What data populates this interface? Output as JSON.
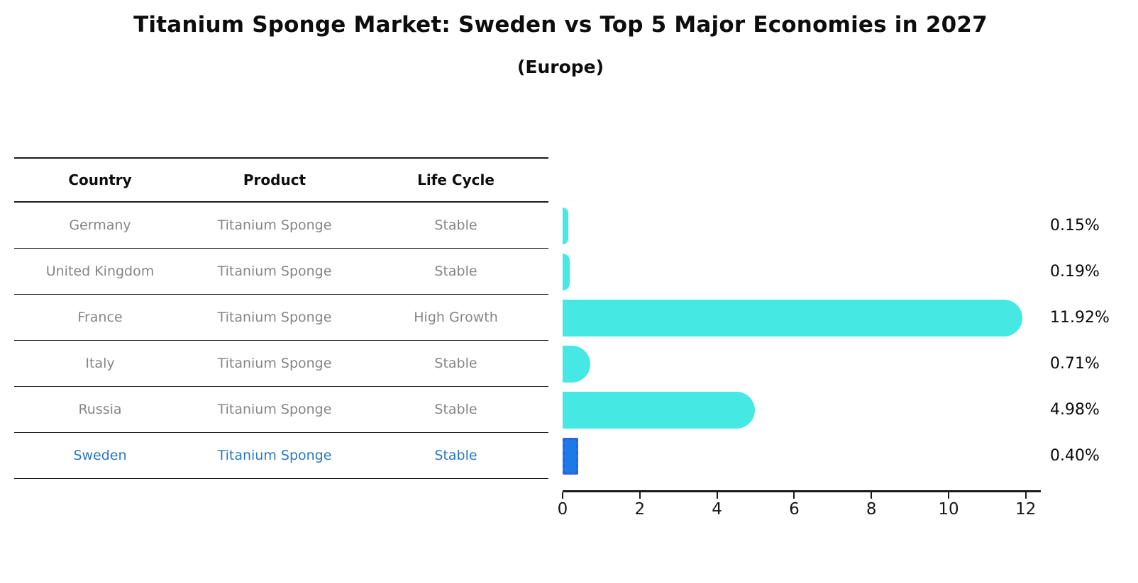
{
  "title": "Titanium Sponge Market: Sweden vs Top 5 Major Economies in 2027",
  "subtitle": "(Europe)",
  "table": {
    "headers": [
      "Country",
      "Product",
      "Life Cycle"
    ],
    "rows": [
      {
        "country": "Germany",
        "product": "Titanium Sponge",
        "life_cycle": "Stable",
        "highlight": false
      },
      {
        "country": "United Kingdom",
        "product": "Titanium Sponge",
        "life_cycle": "Stable",
        "highlight": false
      },
      {
        "country": "France",
        "product": "Titanium Sponge",
        "life_cycle": "High Growth",
        "highlight": false
      },
      {
        "country": "Italy",
        "product": "Titanium Sponge",
        "life_cycle": "Stable",
        "highlight": false
      },
      {
        "country": "Russia",
        "product": "Titanium Sponge",
        "life_cycle": "Stable",
        "highlight": false
      },
      {
        "country": "Sweden",
        "product": "Titanium Sponge",
        "life_cycle": "Stable",
        "highlight": true
      }
    ]
  },
  "chart_data": {
    "type": "bar",
    "orientation": "horizontal",
    "title": "Titanium Sponge Market: Sweden vs Top 5 Major Economies in 2027 (Europe)",
    "categories": [
      "Germany",
      "United Kingdom",
      "France",
      "Italy",
      "Russia",
      "Sweden"
    ],
    "values": [
      0.15,
      0.19,
      11.92,
      0.71,
      4.98,
      0.4
    ],
    "value_labels": [
      "0.15%",
      "0.19%",
      "11.92%",
      "0.71%",
      "4.98%",
      "0.40%"
    ],
    "x_ticks": [
      "0",
      "2",
      "4",
      "6",
      "8",
      "10",
      "12"
    ],
    "xlim": [
      0,
      12.4
    ],
    "grid": false,
    "legend": "none",
    "bar_color": "#45E8E2",
    "highlight_index": 5,
    "highlight_bar_color": "#1B7AE8",
    "highlight_bar_edge_color": "#2E63D6",
    "highlight_text_color": "#2878BE",
    "axis_color": "#1a1a1a"
  }
}
